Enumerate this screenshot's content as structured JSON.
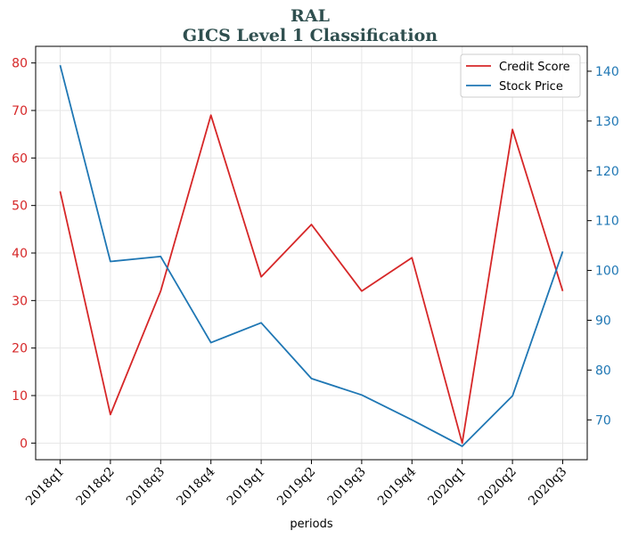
{
  "chart_data": {
    "type": "line",
    "title": "RAL",
    "subtitle": "GICS Level 1 Classification",
    "xlabel": "periods",
    "categories": [
      "2018q1",
      "2018q2",
      "2018q3",
      "2018q4",
      "2019q1",
      "2019q2",
      "2019q3",
      "2019q4",
      "2020q1",
      "2020q2",
      "2020q3"
    ],
    "series": [
      {
        "name": "Credit Score",
        "axis": "left",
        "color": "#d62728",
        "values": [
          53,
          6,
          32,
          69,
          35,
          46,
          32,
          39,
          0,
          66,
          32
        ]
      },
      {
        "name": "Stock Price",
        "axis": "right",
        "color": "#1f77b4",
        "values": [
          141.2,
          101.8,
          102.8,
          85.5,
          89.5,
          78.3,
          75.0,
          70.0,
          64.7,
          74.8,
          103.8
        ]
      }
    ],
    "y_left": {
      "ylim": [
        -3.5,
        83.5
      ],
      "ticks": [
        0,
        10,
        20,
        30,
        40,
        50,
        60,
        70,
        80
      ],
      "color": "#d62728"
    },
    "y_right": {
      "ylim": [
        62.0,
        145.0
      ],
      "ticks": [
        70,
        80,
        90,
        100,
        110,
        120,
        130,
        140
      ],
      "color": "#1f77b4"
    },
    "grid": true,
    "legend": "top-right"
  }
}
